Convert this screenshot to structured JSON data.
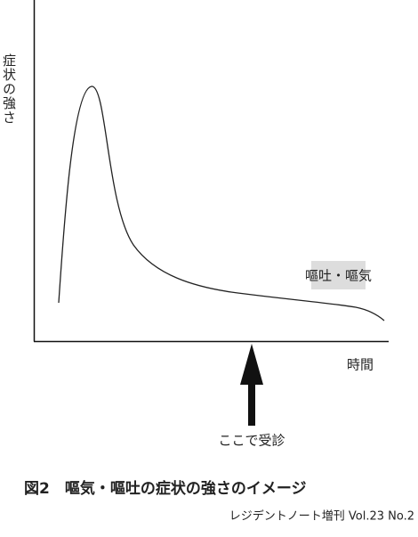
{
  "y_axis_label": "症状の強さ",
  "x_axis_label": "時間",
  "curve_label": "嘔吐・嘔気",
  "arrow_label": "ここで受診",
  "caption": "図2　嘔気・嘔吐の症状の強さのイメージ",
  "source": "レジデントノート増刊 Vol.23 No.2"
}
